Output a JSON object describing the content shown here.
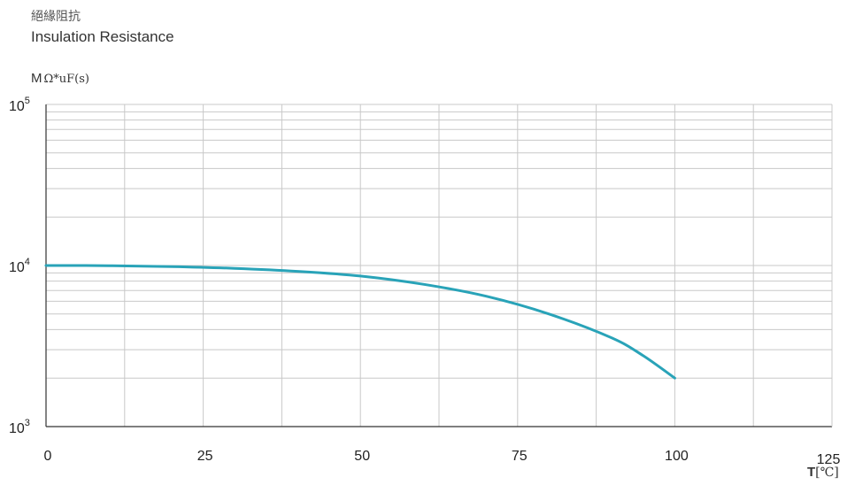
{
  "header": {
    "title_cn": "絕緣阻抗",
    "title_en": "Insulation Resistance"
  },
  "axis": {
    "y_unit_prefix": "M",
    "y_unit_rest": "Ω*uF(s)",
    "x_unit_letter": "T",
    "x_unit_rest": "[℃]"
  },
  "colors": {
    "curve": "#29a3b8",
    "grid": "#c8c8c8",
    "axis": "#333333"
  },
  "chart_data": {
    "type": "line",
    "title": "Insulation Resistance",
    "xlabel": "T[℃]",
    "ylabel": "MΩ*uF(s)",
    "x_scale": "linear",
    "y_scale": "log",
    "xlim": [
      0,
      125
    ],
    "ylim": [
      1000,
      100000
    ],
    "grid": true,
    "x_ticks": [
      0,
      25,
      50,
      75,
      100,
      125
    ],
    "y_ticks": [
      {
        "base": "10",
        "exp": "3",
        "value": 1000
      },
      {
        "base": "10",
        "exp": "4",
        "value": 10000
      },
      {
        "base": "10",
        "exp": "5",
        "value": 100000
      }
    ],
    "series": [
      {
        "x": [
          0,
          10,
          20,
          30,
          40,
          50,
          60,
          70,
          80,
          90,
          95,
          100
        ],
        "y": [
          10000,
          9980,
          9850,
          9600,
          9200,
          8600,
          7650,
          6450,
          5000,
          3550,
          2750,
          2000
        ]
      }
    ]
  }
}
